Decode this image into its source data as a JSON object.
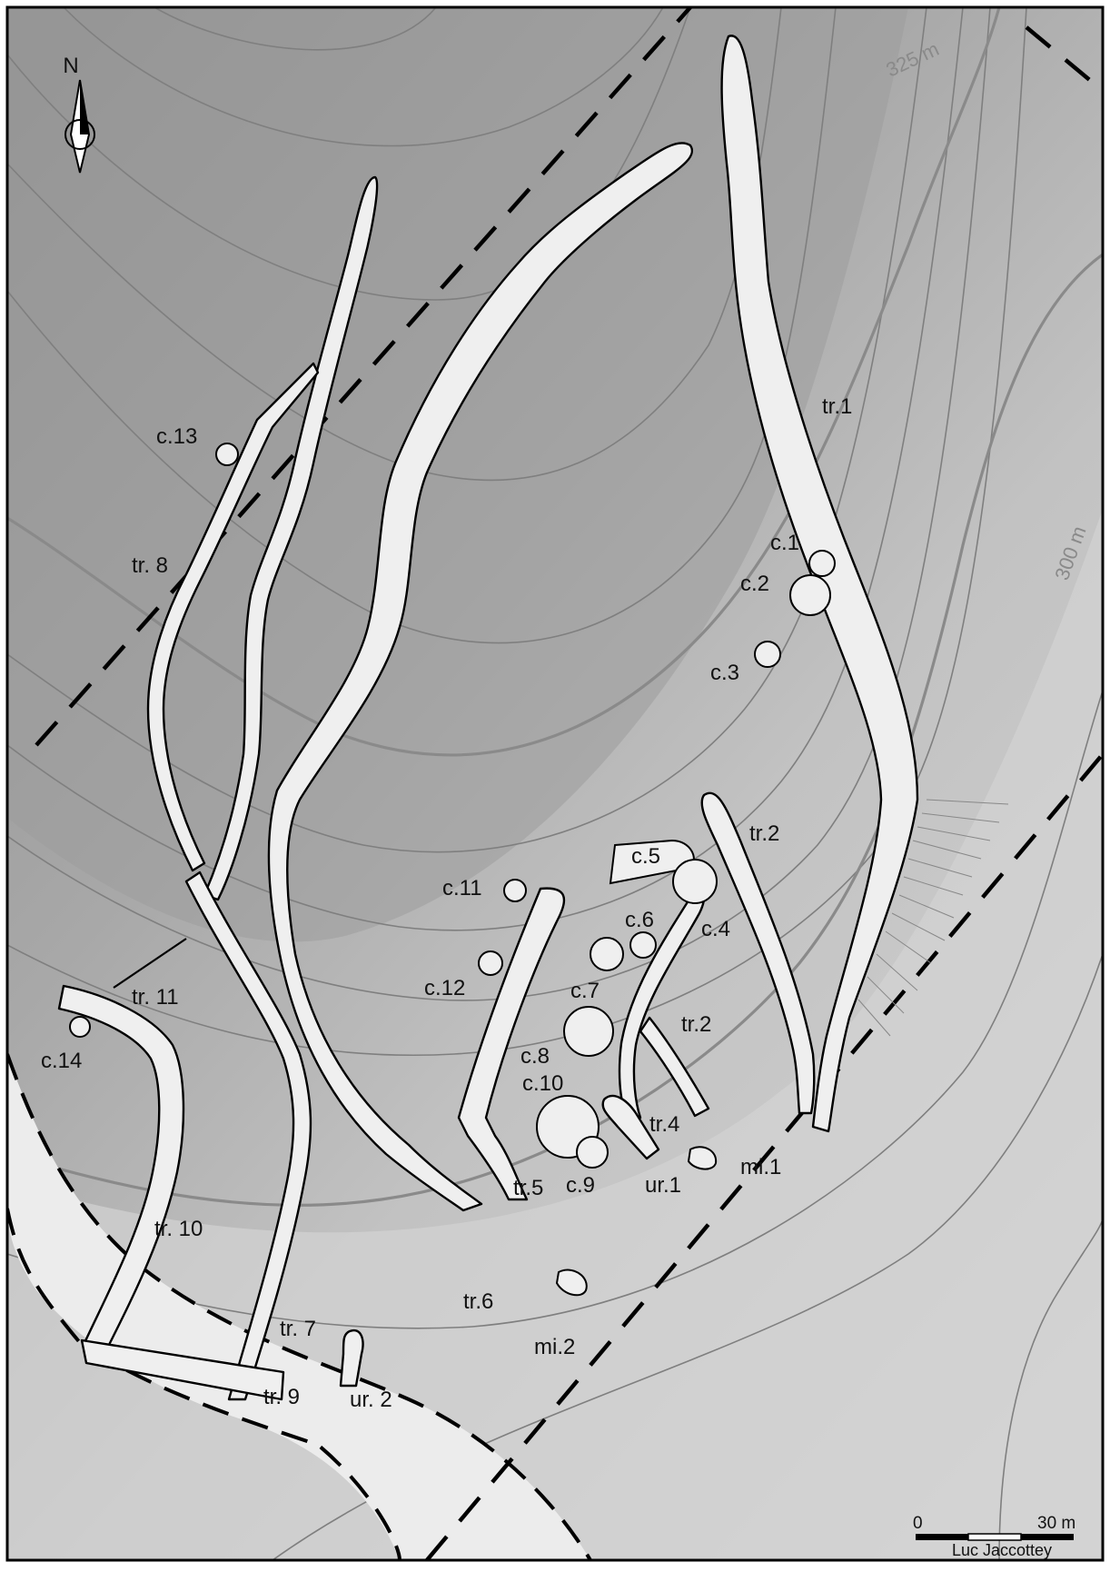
{
  "north_arrow": {
    "label": "N"
  },
  "contours": {
    "upper": "325 m",
    "lower": "300 m"
  },
  "features": {
    "trenches": {
      "tr1": "tr.1",
      "tr2_upper": "tr.2",
      "tr2_lower": "tr.2",
      "tr4": "tr.4",
      "tr5": "tr.5",
      "tr6": "tr.6",
      "tr7": "tr. 7",
      "tr8": "tr. 8",
      "tr9": "tr. 9",
      "tr10": "tr. 10",
      "tr11": "tr. 11"
    },
    "craters": {
      "c1": "c.1",
      "c2": "c.2",
      "c3": "c.3",
      "c4": "c.4",
      "c5": "c.5",
      "c6": "c.6",
      "c7": "c.7",
      "c8": "c.8",
      "c9": "c.9",
      "c10": "c.10",
      "c11": "c.11",
      "c12": "c.12",
      "c13": "c.13",
      "c14": "c.14"
    },
    "underground": {
      "ur1": "ur.1",
      "ur2": "ur. 2"
    },
    "mines": {
      "mi1": "mi.1",
      "mi2": "mi.2"
    }
  },
  "scale_bar": {
    "start": "0",
    "end": "30 m"
  },
  "credit": "Luc Jaccottey",
  "colors": {
    "terrain_dark": "#9a9a9a",
    "terrain_mid": "#b4b4b4",
    "terrain_light": "#d0d0d0",
    "feature_fill": "#efefef",
    "road_fill": "#ececec",
    "outline": "#000000"
  }
}
